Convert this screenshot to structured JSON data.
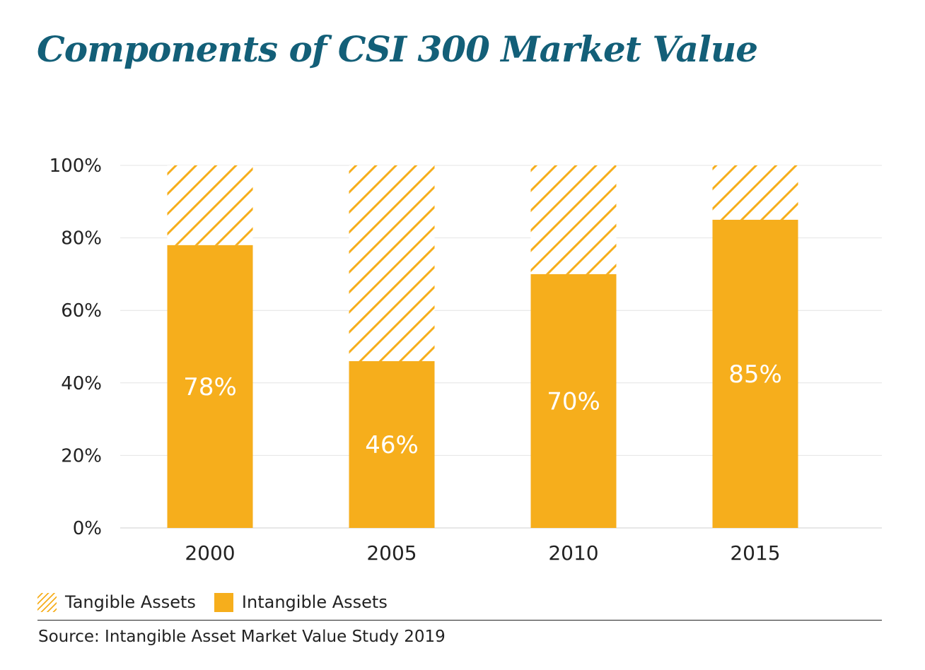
{
  "chart_data": {
    "type": "bar",
    "stacked": true,
    "title": "Components of CSI 300 Market Value",
    "categories": [
      "2000",
      "2005",
      "2010",
      "2015"
    ],
    "series": [
      {
        "name": "Intangible Assets",
        "values": [
          78,
          46,
          70,
          85
        ],
        "color": "#f6ae1c",
        "pattern": "solid"
      },
      {
        "name": "Tangible Assets",
        "values": [
          22,
          54,
          30,
          15
        ],
        "color": "#f6ae1c",
        "pattern": "hatched"
      }
    ],
    "data_labels": [
      "78%",
      "46%",
      "70%",
      "85%"
    ],
    "yticks": [
      "0%",
      "20%",
      "40%",
      "60%",
      "80%",
      "100%"
    ],
    "ylim": [
      0,
      100
    ],
    "grid": true,
    "legend_position": "bottom-left",
    "source": "Source: Intangible Asset Market Value Study 2019"
  }
}
